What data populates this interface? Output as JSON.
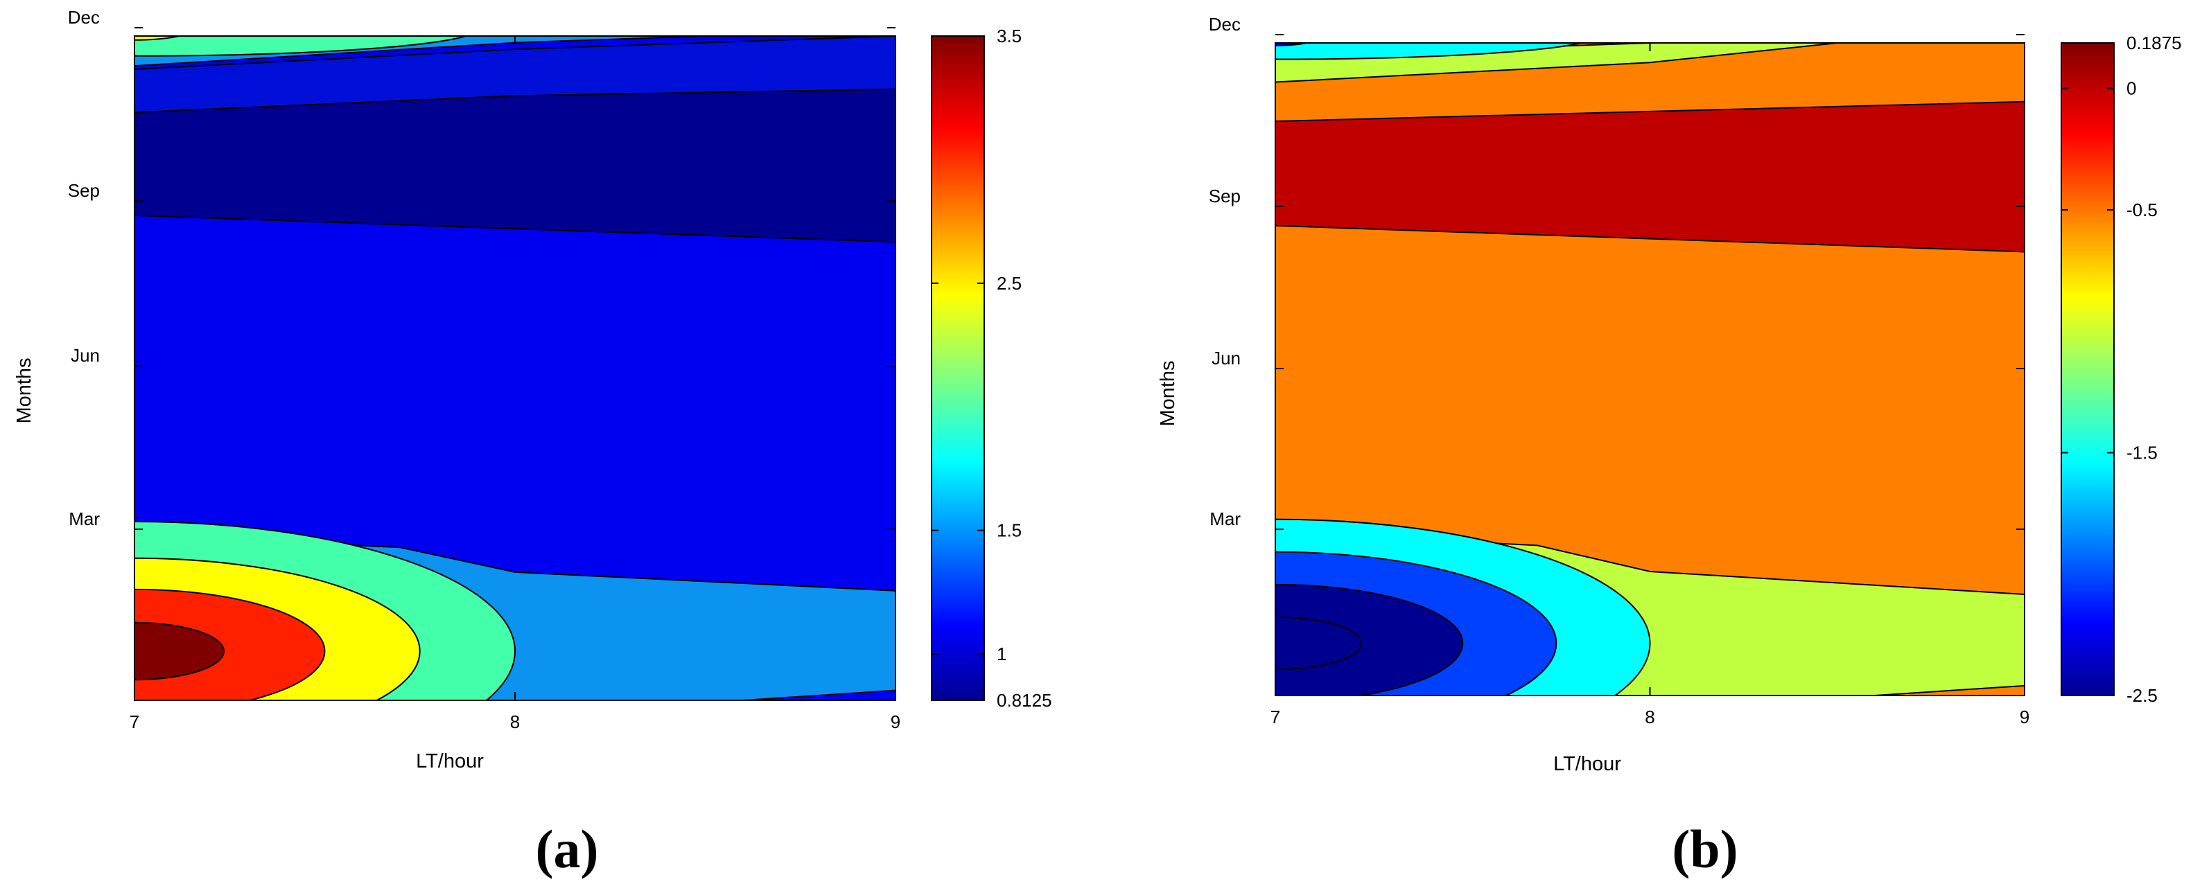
{
  "panels": [
    {
      "id": "a",
      "panel_label": "(a)",
      "colorbar": {
        "min": 0.8125,
        "max": 3.5,
        "tick_labels": [
          "3.5",
          "2.5",
          "1.5",
          "1",
          "0.8125"
        ],
        "tick_values": [
          3.5,
          2.5,
          1.5,
          1.0,
          0.8125
        ],
        "stops": [
          [
            0.0,
            "#00008f"
          ],
          [
            0.11,
            "#0000ff"
          ],
          [
            0.36,
            "#00ffff"
          ],
          [
            0.61,
            "#ffff00"
          ],
          [
            0.86,
            "#ff0000"
          ],
          [
            1.0,
            "#800000"
          ]
        ]
      },
      "chart_data": {
        "type": "heatmap",
        "xlabel": "LT/hour",
        "ylabel": "Months",
        "x_ticks": [
          "7",
          "8",
          "9"
        ],
        "y_ticks": [
          "Mar",
          "Jun",
          "Sep",
          "Dec"
        ],
        "xlim": [
          7,
          9
        ],
        "ylim": [
          0,
          1
        ],
        "background_color": "#0000f0",
        "contour_fills": [
          {
            "color": "#000090",
            "top": [
              [
                7,
                0.885
              ],
              [
                8,
                0.91
              ],
              [
                9,
                0.92
              ]
            ],
            "bottom": [
              [
                7,
                0.73
              ],
              [
                8,
                0.71
              ],
              [
                9,
                0.69
              ]
            ]
          },
          {
            "color": "#0010d8",
            "top": [
              [
                7,
                0.95
              ],
              [
                8,
                0.98
              ],
              [
                9,
                1.0
              ]
            ],
            "bottom": [
              [
                7,
                0.885
              ],
              [
                8,
                0.91
              ],
              [
                9,
                0.92
              ]
            ]
          },
          {
            "color": "#0c92ef",
            "top": [
              [
                7,
                1.0
              ],
              [
                8,
                1.0
              ],
              [
                8.4,
                1.0
              ]
            ],
            "bottom": [
              [
                7,
                0.955
              ],
              [
                8,
                0.99
              ],
              [
                8.5,
                1.0
              ]
            ]
          },
          {
            "color": "#0c92ef",
            "top": [
              [
                7,
                0.25
              ],
              [
                7.7,
                0.23
              ],
              [
                8,
                0.193
              ],
              [
                9,
                0.165
              ]
            ],
            "bottom": [
              [
                7,
                0.0
              ],
              [
                9,
                0.0
              ]
            ]
          },
          {
            "color": "#0000ff",
            "top": [
              [
                8.6,
                0.0
              ],
              [
                9,
                0.015
              ]
            ],
            "bottom": [
              [
                8.6,
                0.0
              ],
              [
                9,
                0.0
              ]
            ]
          }
        ],
        "contour_ellipses": [
          {
            "color": "#44ffaa",
            "x_extent": 8.0,
            "y_center": 0.074,
            "y_radius": 0.195
          },
          {
            "color": "#ffff00",
            "x_extent": 7.75,
            "y_center": 0.074,
            "y_radius": 0.14
          },
          {
            "color": "#ff2000",
            "x_extent": 7.5,
            "y_center": 0.074,
            "y_radius": 0.093
          },
          {
            "color": "#800000",
            "x_extent": 7.235,
            "y_center": 0.074,
            "y_radius": 0.043
          },
          {
            "color": "#44ffaa",
            "x_extent": 7.9,
            "y_center": 1.01,
            "y_radius": 0.04
          },
          {
            "color": "#ffff00",
            "x_extent": 7.15,
            "y_center": 1.01,
            "y_radius": 0.016
          }
        ]
      }
    },
    {
      "id": "b",
      "panel_label": "(b)",
      "colorbar": {
        "min": -2.5,
        "max": 0.1875,
        "tick_labels": [
          "0.1875",
          "0",
          "-0.5",
          "-1.5",
          "-2.5"
        ],
        "tick_values": [
          0.1875,
          0,
          -0.5,
          -1.5,
          -2.5
        ],
        "stops": [
          [
            0.0,
            "#00008f"
          ],
          [
            0.11,
            "#0000ff"
          ],
          [
            0.36,
            "#00ffff"
          ],
          [
            0.61,
            "#ffff00"
          ],
          [
            0.86,
            "#ff0000"
          ],
          [
            1.0,
            "#800000"
          ]
        ]
      },
      "chart_data": {
        "type": "heatmap",
        "xlabel": "LT/hour",
        "ylabel": "Months",
        "x_ticks": [
          "7",
          "8",
          "9"
        ],
        "y_ticks": [
          "Mar",
          "Jun",
          "Sep",
          "Dec"
        ],
        "xlim": [
          7,
          9
        ],
        "ylim": [
          0,
          1
        ],
        "background_color": "#ff8000",
        "contour_fills": [
          {
            "color": "#c00000",
            "top": [
              [
                7,
                0.88
              ],
              [
                8,
                0.895
              ],
              [
                9,
                0.91
              ]
            ],
            "bottom": [
              [
                7,
                0.72
              ],
              [
                8,
                0.7
              ],
              [
                9,
                0.68
              ]
            ]
          },
          {
            "color": "#bfff3f",
            "top": [
              [
                7,
                0.98
              ],
              [
                8,
                1.0
              ],
              [
                8.4,
                1.0
              ]
            ],
            "bottom": [
              [
                7,
                0.94
              ],
              [
                8,
                0.97
              ],
              [
                8.5,
                1.0
              ]
            ]
          },
          {
            "color": "#bfff3f",
            "top": [
              [
                7,
                0.25
              ],
              [
                7.7,
                0.23
              ],
              [
                8,
                0.19
              ],
              [
                9,
                0.155
              ]
            ],
            "bottom": [
              [
                7,
                0.0
              ],
              [
                9,
                0.0
              ]
            ]
          },
          {
            "color": "#ff8000",
            "top": [
              [
                8.6,
                0.0
              ],
              [
                9,
                0.015
              ]
            ],
            "bottom": [
              [
                8.6,
                0.0
              ],
              [
                9,
                0.0
              ]
            ]
          }
        ],
        "contour_ellipses": [
          {
            "color": "#00ffff",
            "x_extent": 8.0,
            "y_center": 0.08,
            "y_radius": 0.19
          },
          {
            "color": "#0040ff",
            "x_extent": 7.75,
            "y_center": 0.08,
            "y_radius": 0.14
          },
          {
            "color": "#000090",
            "x_extent": 7.5,
            "y_center": 0.08,
            "y_radius": 0.09
          },
          {
            "color": "#000090",
            "x_extent": 7.23,
            "y_center": 0.08,
            "y_radius": 0.04
          },
          {
            "color": "#00ffff",
            "x_extent": 7.85,
            "y_center": 1.01,
            "y_radius": 0.035
          },
          {
            "color": "#0000ff",
            "x_extent": 7.12,
            "y_center": 1.01,
            "y_radius": 0.014
          }
        ]
      }
    }
  ]
}
